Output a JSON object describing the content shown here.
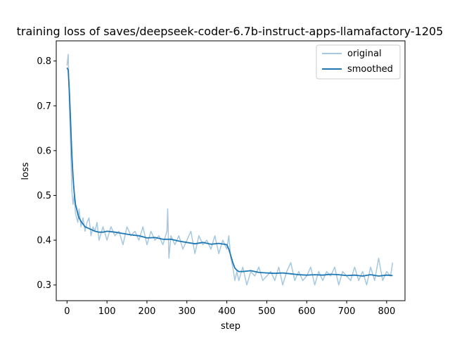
{
  "chart_data": {
    "type": "line",
    "title": "training loss of saves/deepseek-coder-6.7b-instruct-apps-llamafactory-1205",
    "xlabel": "step",
    "ylabel": "loss",
    "xlim": [
      -27,
      846
    ],
    "ylim": [
      0.265,
      0.845
    ],
    "xticks": [
      0,
      100,
      200,
      300,
      400,
      500,
      600,
      700,
      800
    ],
    "yticks": [
      0.3,
      0.4,
      0.5,
      0.6,
      0.7,
      0.8
    ],
    "grid": false,
    "legend_position": "top-right",
    "series": [
      {
        "name": "original",
        "color": "#a6c8e0",
        "x": [
          0,
          3,
          6,
          9,
          12,
          15,
          18,
          21,
          24,
          27,
          30,
          35,
          40,
          45,
          50,
          55,
          60,
          65,
          70,
          75,
          80,
          90,
          100,
          110,
          120,
          130,
          140,
          150,
          160,
          170,
          180,
          190,
          200,
          210,
          220,
          230,
          240,
          250,
          252,
          255,
          260,
          270,
          280,
          290,
          300,
          310,
          320,
          330,
          340,
          350,
          360,
          370,
          380,
          390,
          400,
          405,
          410,
          415,
          420,
          425,
          430,
          440,
          450,
          460,
          470,
          480,
          490,
          500,
          510,
          520,
          530,
          540,
          550,
          560,
          570,
          580,
          590,
          600,
          610,
          620,
          630,
          640,
          650,
          660,
          670,
          680,
          690,
          700,
          710,
          720,
          730,
          740,
          750,
          760,
          770,
          780,
          790,
          800,
          810,
          815
        ],
        "y": [
          0.79,
          0.815,
          0.7,
          0.61,
          0.51,
          0.48,
          0.5,
          0.46,
          0.45,
          0.44,
          0.47,
          0.43,
          0.45,
          0.42,
          0.44,
          0.45,
          0.41,
          0.43,
          0.42,
          0.44,
          0.4,
          0.43,
          0.4,
          0.43,
          0.41,
          0.42,
          0.39,
          0.43,
          0.41,
          0.42,
          0.4,
          0.43,
          0.39,
          0.42,
          0.4,
          0.41,
          0.39,
          0.42,
          0.47,
          0.36,
          0.41,
          0.39,
          0.41,
          0.38,
          0.4,
          0.42,
          0.37,
          0.41,
          0.39,
          0.4,
          0.38,
          0.41,
          0.37,
          0.4,
          0.38,
          0.41,
          0.36,
          0.34,
          0.31,
          0.33,
          0.31,
          0.34,
          0.3,
          0.33,
          0.32,
          0.34,
          0.31,
          0.32,
          0.33,
          0.31,
          0.34,
          0.3,
          0.33,
          0.35,
          0.31,
          0.33,
          0.31,
          0.32,
          0.34,
          0.3,
          0.33,
          0.31,
          0.33,
          0.32,
          0.34,
          0.3,
          0.33,
          0.32,
          0.31,
          0.34,
          0.31,
          0.33,
          0.3,
          0.34,
          0.31,
          0.36,
          0.31,
          0.33,
          0.32,
          0.35
        ],
        "width": 1.5
      },
      {
        "name": "smoothed",
        "color": "#1f77b4",
        "x": [
          0,
          3,
          6,
          9,
          12,
          15,
          18,
          21,
          24,
          27,
          30,
          35,
          40,
          45,
          50,
          60,
          70,
          80,
          90,
          100,
          120,
          140,
          160,
          180,
          200,
          220,
          240,
          260,
          280,
          300,
          320,
          340,
          360,
          380,
          400,
          405,
          410,
          415,
          420,
          425,
          430,
          440,
          460,
          480,
          500,
          520,
          540,
          560,
          580,
          600,
          620,
          640,
          660,
          680,
          700,
          720,
          740,
          760,
          780,
          800,
          815
        ],
        "y": [
          0.785,
          0.78,
          0.73,
          0.66,
          0.59,
          0.54,
          0.505,
          0.48,
          0.47,
          0.458,
          0.45,
          0.442,
          0.436,
          0.43,
          0.428,
          0.424,
          0.42,
          0.418,
          0.418,
          0.42,
          0.418,
          0.415,
          0.412,
          0.41,
          0.405,
          0.406,
          0.402,
          0.402,
          0.398,
          0.395,
          0.392,
          0.395,
          0.391,
          0.393,
          0.39,
          0.38,
          0.365,
          0.35,
          0.338,
          0.333,
          0.33,
          0.33,
          0.332,
          0.328,
          0.327,
          0.326,
          0.327,
          0.325,
          0.323,
          0.322,
          0.323,
          0.322,
          0.324,
          0.323,
          0.321,
          0.322,
          0.32,
          0.323,
          0.32,
          0.322,
          0.321
        ],
        "width": 1.8
      }
    ]
  }
}
